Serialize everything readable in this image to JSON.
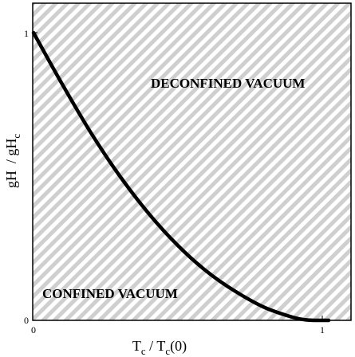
{
  "chart_data": {
    "type": "line",
    "xlabel": {
      "main": "T",
      "sub": "c",
      "rest": " / T",
      "sub2": "c",
      "tail": "(0)"
    },
    "ylabel": {
      "main": "gH",
      "sep": "  / gH",
      "sub": "c"
    },
    "xlim": [
      0,
      1
    ],
    "ylim": [
      0,
      1
    ],
    "x_ticks": [
      "0",
      "1"
    ],
    "y_ticks": [
      "0",
      "1"
    ],
    "grid": false,
    "series": [
      {
        "x": [
          0,
          0.1,
          0.2,
          0.3,
          0.4,
          0.5,
          0.6,
          0.7,
          0.8,
          0.9,
          0.95,
          1.0
        ],
        "y": [
          1.0,
          0.82,
          0.65,
          0.5,
          0.37,
          0.26,
          0.17,
          0.1,
          0.045,
          0.01,
          0.001,
          0
        ]
      }
    ],
    "annotations": {
      "upper_region": "DECONFINED VACUUM",
      "lower_region": "CONFINED VACUUM"
    },
    "colors": {
      "curve": "#000000",
      "hatch": "#cfcfcf",
      "background": "#ffffff"
    }
  }
}
